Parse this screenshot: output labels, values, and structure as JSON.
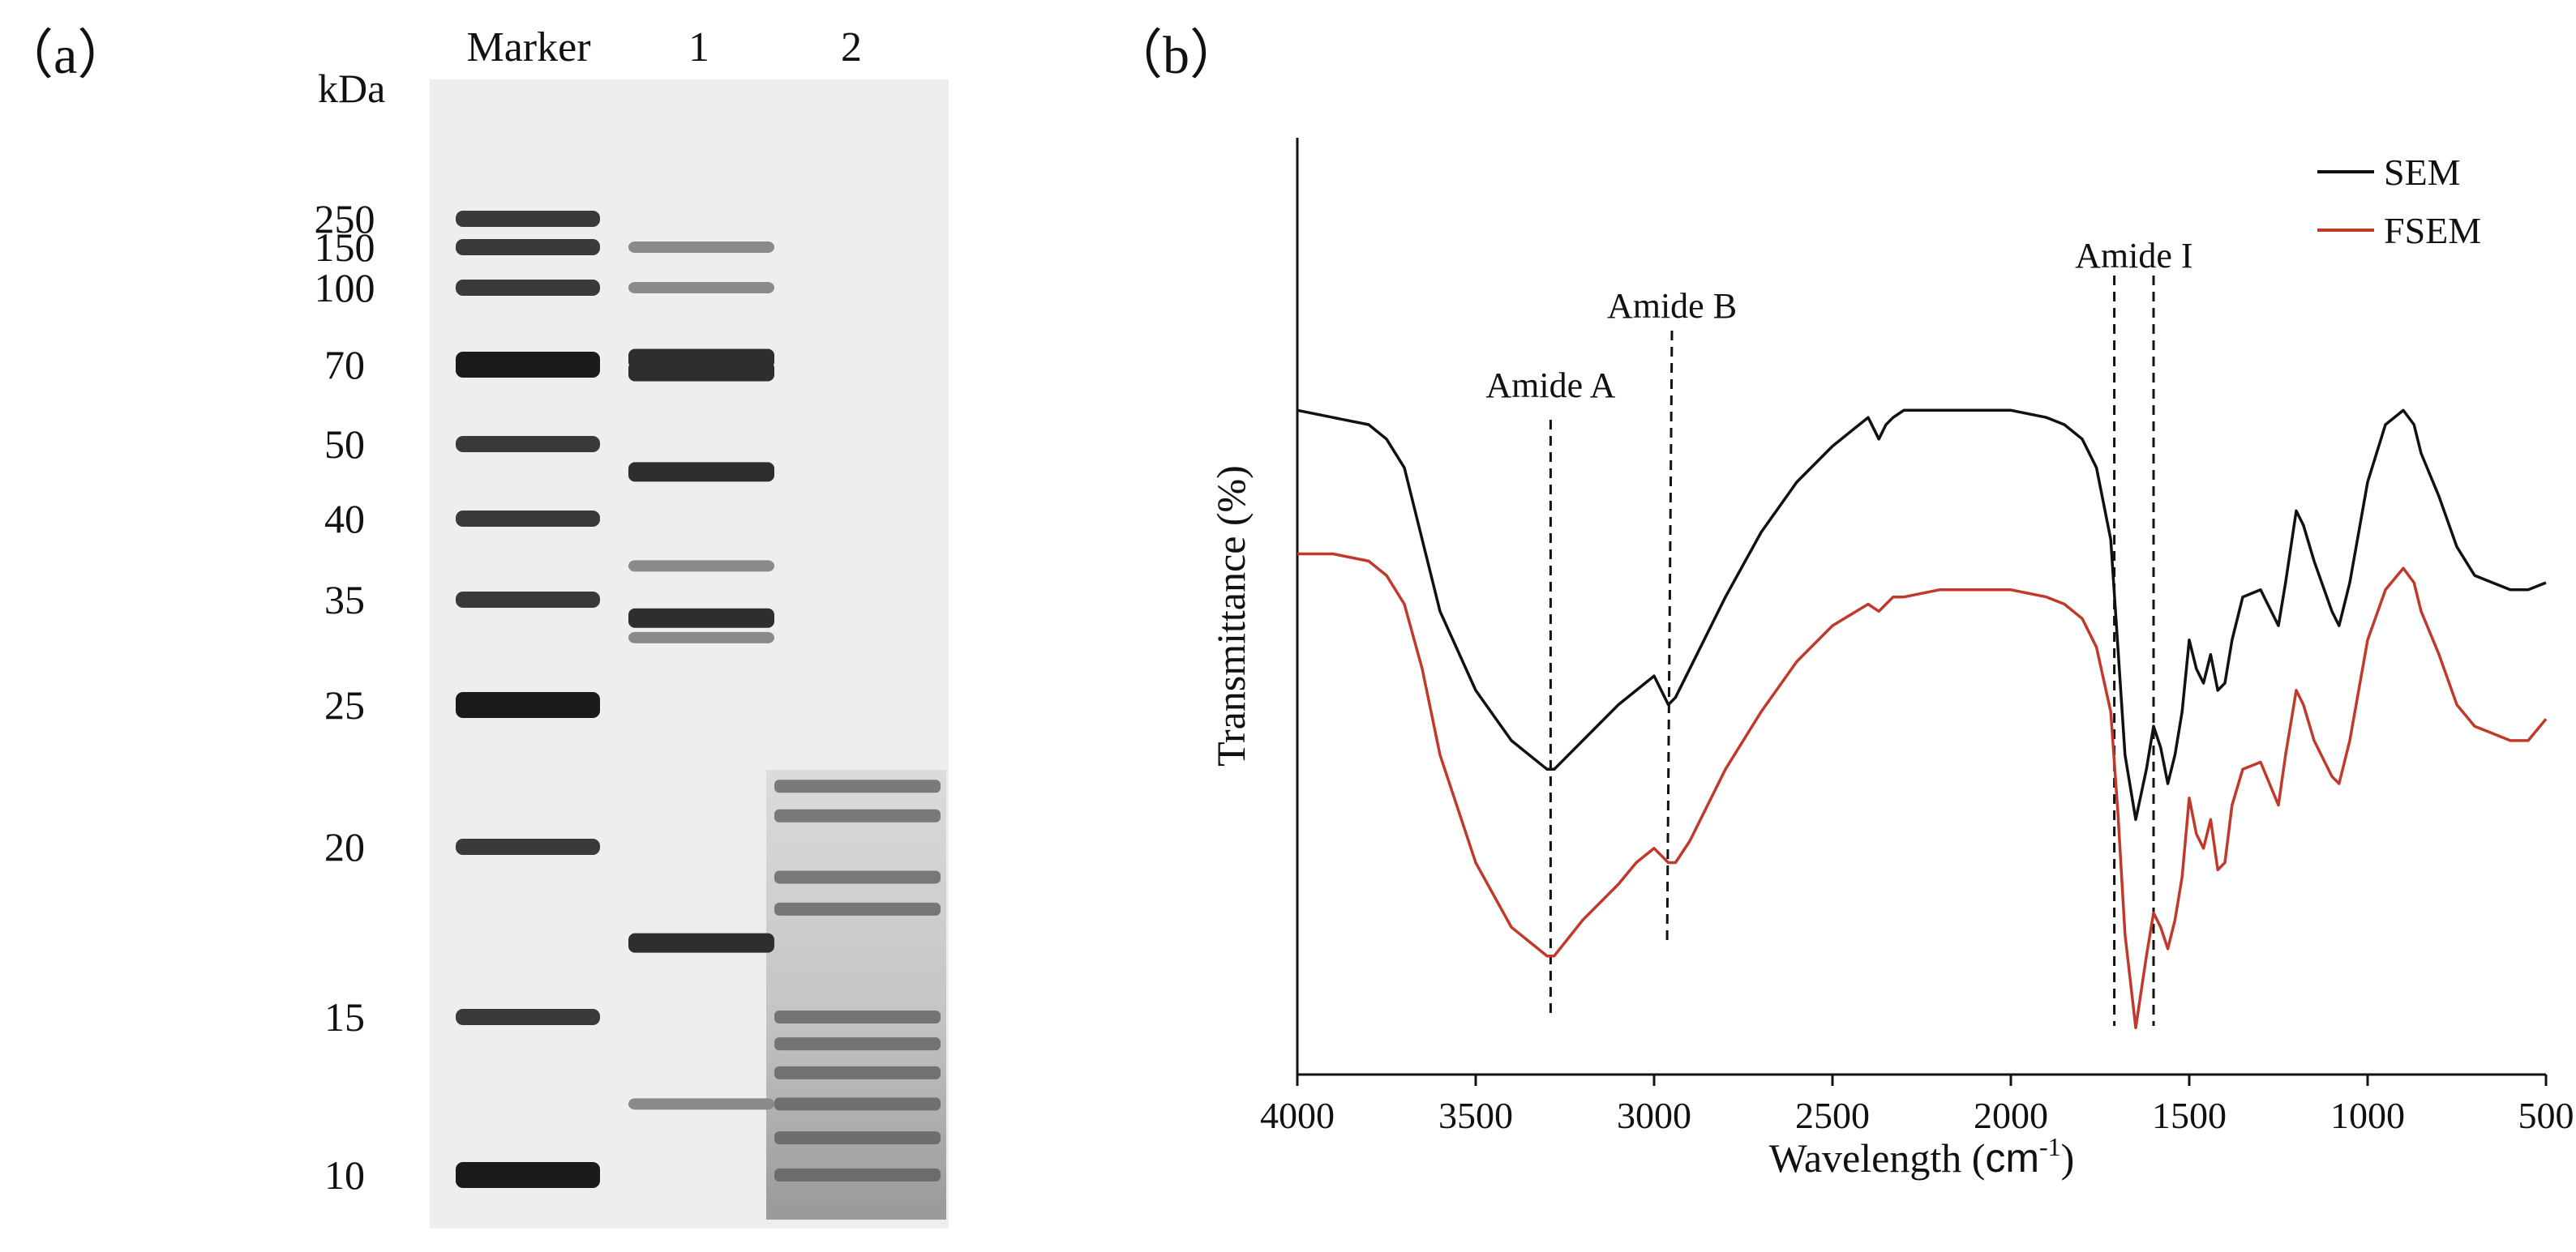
{
  "panel_a": {
    "label": "（a）",
    "unit": "kDa",
    "lanes": [
      "Marker",
      "1",
      "2"
    ],
    "marker_kda": [
      "250",
      "150",
      "100",
      "70",
      "50",
      "40",
      "35",
      "25",
      "20",
      "15",
      "10"
    ]
  },
  "panel_b": {
    "label": "（b）",
    "xlabel_text": "Wavelength (",
    "xlabel_unit": "cm",
    "xlabel_sup": "-1",
    "xlabel_close": ")",
    "ylabel": "Transmittance (%)",
    "annotations": [
      "Amide A",
      "Amide B",
      "Amide I"
    ]
  },
  "chart_data": [
    {
      "type": "other",
      "kind": "SDS-PAGE gel",
      "y_unit": "kDa",
      "lanes": [
        "Marker",
        "1",
        "2"
      ],
      "marker_kda": [
        250,
        150,
        100,
        70,
        50,
        40,
        35,
        25,
        20,
        15,
        10
      ],
      "lane_1_bands_kda": [
        150,
        100,
        72,
        68,
        46,
        37,
        33,
        31,
        17,
        12
      ],
      "lane_2_bands_kda": [
        22,
        21,
        19,
        18,
        15,
        14,
        13,
        12,
        11,
        10
      ]
    },
    {
      "type": "line",
      "xlabel": "Wavelength (cm-1)",
      "ylabel": "Transmittance (%)",
      "xlim": [
        4000,
        500
      ],
      "x_ticks": [
        4000,
        3500,
        3000,
        2500,
        2000,
        1500,
        1000,
        500
      ],
      "y_ticks_shown": false,
      "legend_position": "top-right",
      "series": [
        {
          "name": "SEM",
          "color": "#111111",
          "x": [
            4000,
            3900,
            3800,
            3750,
            3700,
            3650,
            3600,
            3500,
            3400,
            3300,
            3280,
            3200,
            3100,
            3050,
            3000,
            2960,
            2940,
            2900,
            2800,
            2700,
            2600,
            2500,
            2400,
            2370,
            2350,
            2330,
            2300,
            2200,
            2100,
            2000,
            1900,
            1850,
            1800,
            1760,
            1720,
            1700,
            1680,
            1650,
            1620,
            1600,
            1580,
            1560,
            1540,
            1520,
            1500,
            1480,
            1460,
            1440,
            1420,
            1400,
            1380,
            1350,
            1300,
            1250,
            1230,
            1200,
            1180,
            1150,
            1100,
            1080,
            1050,
            1000,
            950,
            900,
            870,
            850,
            800,
            750,
            700,
            650,
            600,
            550,
            500
          ],
          "y": [
            88,
            87,
            86,
            84,
            80,
            70,
            60,
            49,
            42,
            38,
            38,
            42,
            47,
            49,
            51,
            47,
            48,
            52,
            62,
            71,
            78,
            83,
            87,
            84,
            86,
            87,
            88,
            88,
            88,
            88,
            87,
            86,
            84,
            80,
            70,
            55,
            40,
            31,
            38,
            44,
            41,
            36,
            40,
            46,
            56,
            52,
            50,
            54,
            49,
            50,
            56,
            62,
            63,
            58,
            64,
            74,
            72,
            67,
            60,
            58,
            64,
            78,
            86,
            88,
            86,
            82,
            76,
            69,
            65,
            64,
            63,
            63,
            64
          ]
        },
        {
          "name": "FSEM",
          "color": "#c0392b",
          "x": [
            4000,
            3900,
            3800,
            3750,
            3700,
            3650,
            3600,
            3500,
            3400,
            3300,
            3280,
            3200,
            3100,
            3050,
            3000,
            2960,
            2940,
            2900,
            2800,
            2700,
            2600,
            2500,
            2400,
            2370,
            2350,
            2330,
            2300,
            2200,
            2100,
            2000,
            1900,
            1850,
            1800,
            1760,
            1720,
            1700,
            1680,
            1650,
            1620,
            1600,
            1580,
            1560,
            1540,
            1520,
            1500,
            1480,
            1460,
            1440,
            1420,
            1400,
            1380,
            1350,
            1300,
            1250,
            1230,
            1200,
            1180,
            1150,
            1100,
            1080,
            1050,
            1000,
            950,
            900,
            870,
            850,
            800,
            750,
            700,
            650,
            600,
            550,
            500
          ],
          "y": [
            68,
            68,
            67,
            65,
            61,
            52,
            40,
            25,
            16,
            12,
            12,
            17,
            22,
            25,
            27,
            25,
            25,
            28,
            38,
            46,
            53,
            58,
            61,
            60,
            61,
            62,
            62,
            63,
            63,
            63,
            62,
            61,
            59,
            55,
            46,
            32,
            15,
            2,
            12,
            18,
            16,
            13,
            17,
            23,
            34,
            29,
            27,
            31,
            24,
            25,
            33,
            38,
            39,
            33,
            40,
            49,
            47,
            42,
            37,
            36,
            42,
            56,
            63,
            66,
            64,
            60,
            54,
            47,
            44,
            43,
            42,
            42,
            45
          ]
        }
      ],
      "annotations": [
        {
          "text": "Amide A",
          "x": 3290
        },
        {
          "text": "Amide B",
          "x": 2950
        },
        {
          "text": "Amide I",
          "x": [
            1710,
            1600
          ]
        }
      ]
    }
  ]
}
